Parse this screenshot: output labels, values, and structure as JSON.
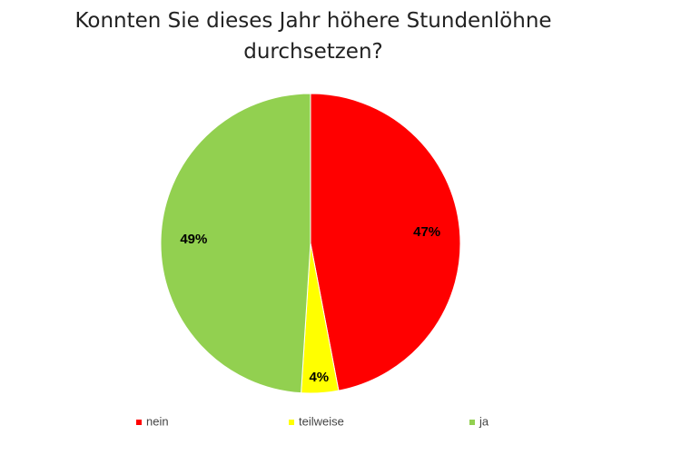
{
  "chart_data": {
    "type": "pie",
    "title": "Konnten Sie dieses Jahr höhere Stundenlöhne durchsetzen?",
    "categories": [
      "nein",
      "teilweise",
      "ja"
    ],
    "values": [
      47,
      4,
      49
    ],
    "value_labels": [
      "47%",
      "4%",
      "49%"
    ],
    "colors": [
      "#ff0000",
      "#ffff00",
      "#92d050"
    ],
    "legend": "bottom"
  }
}
